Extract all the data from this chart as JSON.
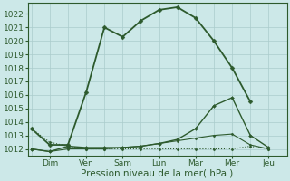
{
  "title": "",
  "xlabel": "Pression niveau de la mer( hPa )",
  "ylabel": "",
  "background_color": "#cce8e8",
  "grid_color": "#aacccc",
  "line_color": "#2d5a2d",
  "ylim": [
    1011.5,
    1022.8
  ],
  "yticks": [
    1012,
    1013,
    1014,
    1015,
    1016,
    1017,
    1018,
    1019,
    1020,
    1021,
    1022
  ],
  "xlim": [
    -0.1,
    7.0
  ],
  "days": [
    "Dim",
    "Ven",
    "Sam",
    "Lun",
    "Mar",
    "Mer",
    "Jeu"
  ],
  "x_tick_pos": [
    0.5,
    1.5,
    2.5,
    3.5,
    4.5,
    5.5,
    6.5
  ],
  "x_vlines": [
    0,
    1,
    2,
    3,
    4,
    5,
    6,
    7
  ],
  "series": [
    {
      "x": [
        0,
        0.5,
        1,
        1.5,
        2,
        2.5,
        3,
        3.5,
        4,
        4.5,
        5,
        5.5,
        6
      ],
      "y": [
        1013.5,
        1012.3,
        1012.3,
        1016.2,
        1021.0,
        1020.3,
        1021.5,
        1022.3,
        1022.5,
        1021.7,
        1020.0,
        1018.0,
        1015.5
      ],
      "linestyle": "-",
      "marker": "D",
      "markersize": 2.5,
      "linewidth": 1.3,
      "color": "#2d5a2d"
    },
    {
      "x": [
        0,
        0.5,
        1,
        1.5,
        2,
        2.5,
        3,
        3.5,
        4,
        4.5,
        5,
        5.5,
        6,
        6.5
      ],
      "y": [
        1012.0,
        1011.8,
        1012.2,
        1012.1,
        1012.1,
        1012.1,
        1012.2,
        1012.4,
        1012.7,
        1013.5,
        1015.2,
        1015.8,
        1013.0,
        1012.1
      ],
      "linestyle": "-",
      "marker": "D",
      "markersize": 2,
      "linewidth": 1.0,
      "color": "#2d5a2d"
    },
    {
      "x": [
        0,
        0.5,
        1,
        1.5,
        2,
        2.5,
        3,
        3.5,
        4,
        4.5,
        5,
        5.5,
        6,
        6.5
      ],
      "y": [
        1012.0,
        1011.8,
        1012.0,
        1012.0,
        1012.0,
        1012.1,
        1012.2,
        1012.4,
        1012.6,
        1012.8,
        1013.0,
        1013.1,
        1012.3,
        1012.0
      ],
      "linestyle": "-",
      "marker": "D",
      "markersize": 1.5,
      "linewidth": 0.8,
      "color": "#2d5a2d"
    },
    {
      "x": [
        0,
        0.5,
        1,
        1.5,
        2,
        2.5,
        3,
        3.5,
        4,
        4.5,
        5,
        5.5,
        6,
        6.5
      ],
      "y": [
        1013.5,
        1012.5,
        1012.2,
        1012.0,
        1012.0,
        1012.0,
        1012.0,
        1012.0,
        1012.0,
        1012.0,
        1012.0,
        1012.0,
        1012.2,
        1012.0
      ],
      "linestyle": ":",
      "marker": "D",
      "markersize": 1.5,
      "linewidth": 0.8,
      "color": "#2d5a2d"
    }
  ],
  "tick_fontsize": 6.5,
  "xlabel_fontsize": 7.5
}
